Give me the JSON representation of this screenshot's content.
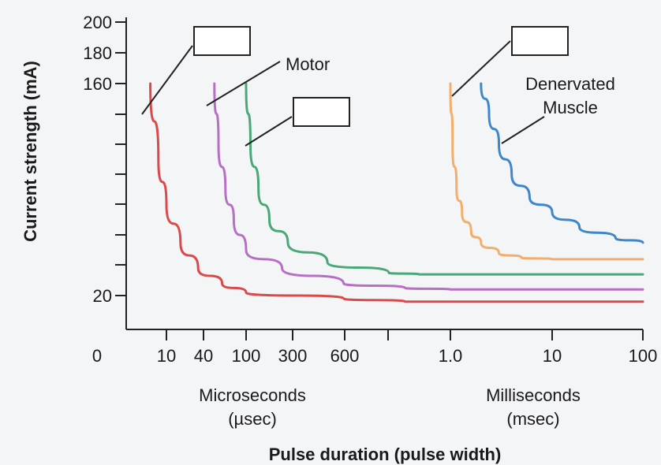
{
  "chart_data": {
    "type": "line",
    "title": "",
    "xlabel": "Pulse duration (pulse width)",
    "ylabel": "Current strength (mA)",
    "ylim": [
      0,
      200
    ],
    "x_ticks": [
      "10",
      "40",
      "100",
      "300",
      "600",
      "1.0",
      "10",
      "100"
    ],
    "x_zero_label": "0",
    "y_ticks": [
      "20",
      "160",
      "180",
      "200"
    ],
    "x_unit_groups": [
      {
        "name": "Microseconds",
        "abbr": "(µsec)"
      },
      {
        "name": "Milliseconds",
        "abbr": "(msec)"
      }
    ],
    "series": [
      {
        "name": "",
        "color": "#d94a4a",
        "label_box": true,
        "points": [
          [
            6,
            160
          ],
          [
            8,
            110
          ],
          [
            10,
            80
          ],
          [
            15,
            55
          ],
          [
            25,
            38
          ],
          [
            50,
            28
          ],
          [
            100,
            22
          ],
          [
            300,
            18
          ],
          [
            600,
            16
          ],
          [
            1000,
            16
          ],
          [
            10000,
            16
          ],
          [
            100000,
            16
          ]
        ]
      },
      {
        "name": "Motor",
        "color": "#b76fc4",
        "label_box": false,
        "points": [
          [
            40,
            160
          ],
          [
            45,
            120
          ],
          [
            55,
            90
          ],
          [
            70,
            70
          ],
          [
            100,
            50
          ],
          [
            150,
            38
          ],
          [
            300,
            28
          ],
          [
            600,
            25
          ],
          [
            1000,
            24
          ],
          [
            10000,
            24
          ],
          [
            100000,
            24
          ]
        ]
      },
      {
        "name": "",
        "color": "#4aa878",
        "label_box": true,
        "points": [
          [
            100,
            160
          ],
          [
            105,
            120
          ],
          [
            115,
            90
          ],
          [
            130,
            70
          ],
          [
            160,
            55
          ],
          [
            250,
            42
          ],
          [
            500,
            35
          ],
          [
            700,
            34
          ],
          [
            1000,
            34
          ],
          [
            10000,
            34
          ],
          [
            100000,
            34
          ]
        ]
      },
      {
        "name": "",
        "color": "#f2ae6a",
        "label_box": true,
        "points": [
          [
            1000,
            160
          ],
          [
            1050,
            120
          ],
          [
            1150,
            90
          ],
          [
            1300,
            75
          ],
          [
            1600,
            62
          ],
          [
            2000,
            55
          ],
          [
            3000,
            48
          ],
          [
            5000,
            45
          ],
          [
            10000,
            44
          ],
          [
            30000,
            44
          ],
          [
            100000,
            44
          ]
        ]
      },
      {
        "name": "Denervated\nMuscle",
        "color": "#3e87c8",
        "label_box": false,
        "points": [
          [
            2000,
            160
          ],
          [
            2400,
            140
          ],
          [
            3000,
            120
          ],
          [
            4000,
            100
          ],
          [
            6000,
            85
          ],
          [
            10000,
            75
          ],
          [
            20000,
            65
          ],
          [
            50000,
            58
          ],
          [
            100000,
            55
          ]
        ]
      }
    ]
  }
}
